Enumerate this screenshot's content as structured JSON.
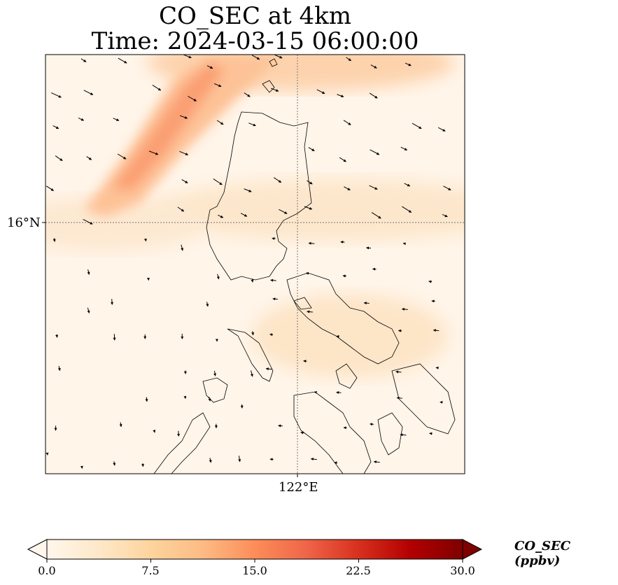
{
  "title": {
    "line1": "CO_SEC at 4km",
    "line2": "Time: 2024-03-15 06:00:00"
  },
  "map": {
    "gridlines": {
      "latitude": "16°N",
      "longitude": "122°E"
    },
    "field": "CO_SEC",
    "colormap": "OrRd",
    "wind_vectors": "shown",
    "coastlines": "shown"
  },
  "colorbar": {
    "label": "CO_SEC (ppbv)",
    "ticks": [
      "0.0",
      "7.5",
      "15.0",
      "22.5",
      "30.0"
    ],
    "min": 0.0,
    "max": 30.0,
    "extend": "both",
    "colors": [
      "#fff7ec",
      "#fee8c8",
      "#fdd49e",
      "#fdbb84",
      "#fc8d59",
      "#ef6548",
      "#d7301f",
      "#b30000",
      "#7f0000"
    ]
  }
}
